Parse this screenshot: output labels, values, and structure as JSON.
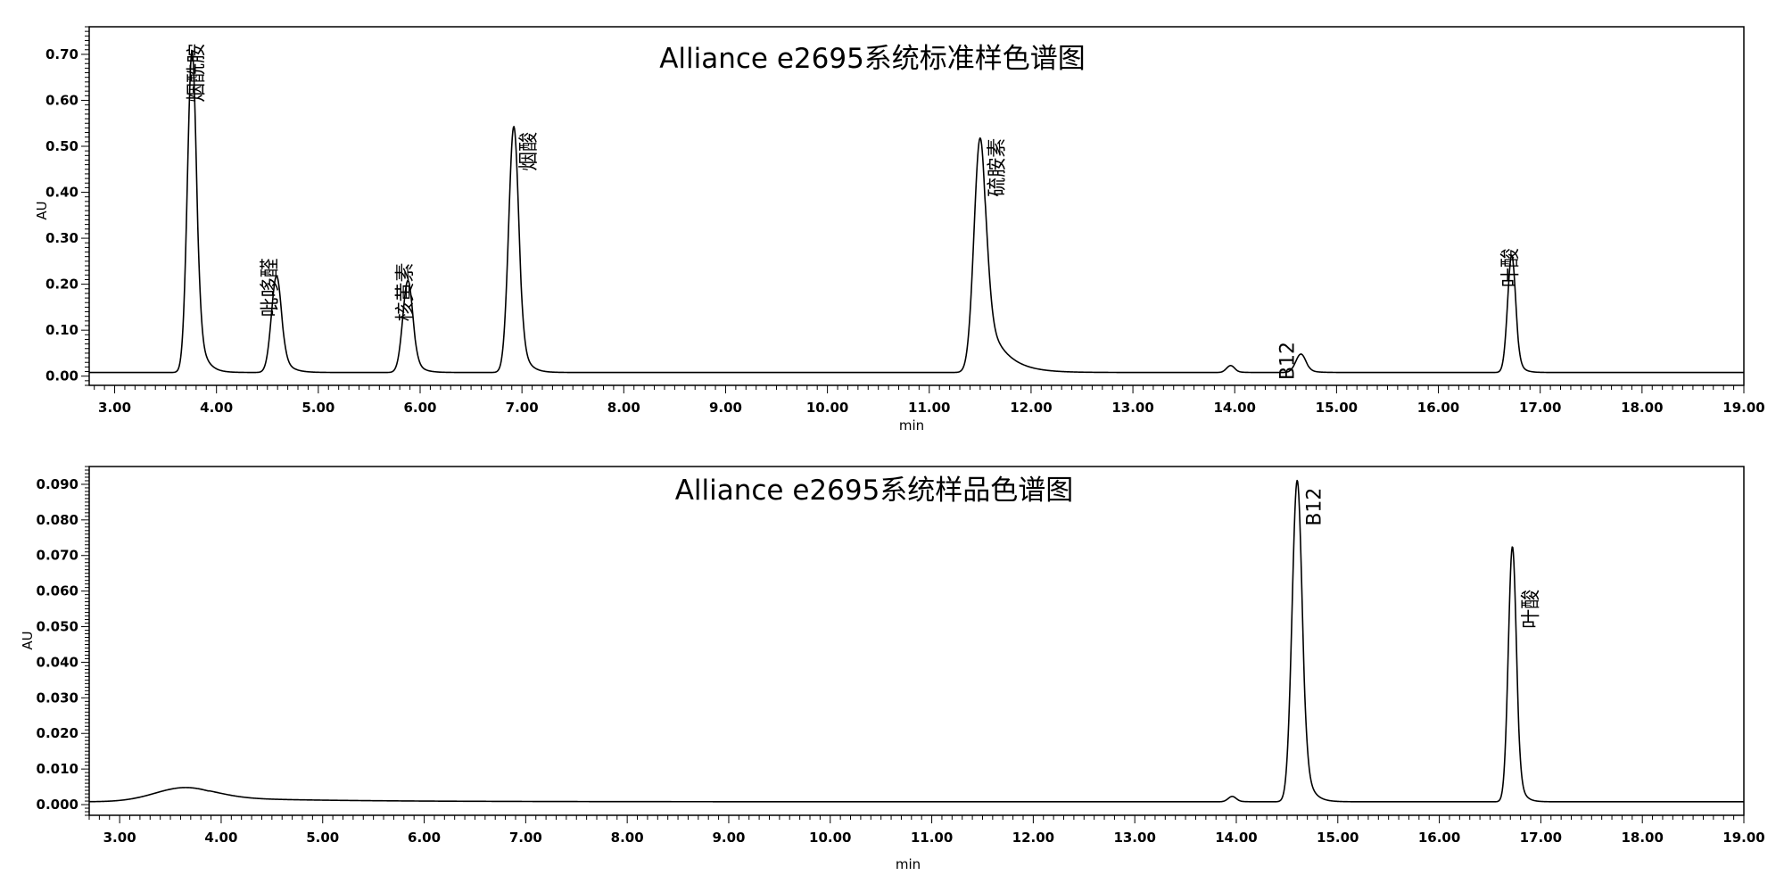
{
  "chart_data": [
    {
      "type": "line",
      "title": "Alliance e2695系统标准样色谱图",
      "xlabel": "min",
      "ylabel": "AU",
      "xlim": [
        2.75,
        19.0
      ],
      "ylim": [
        -0.02,
        0.76
      ],
      "x_ticks": [
        "3.00",
        "4.00",
        "5.00",
        "6.00",
        "7.00",
        "8.00",
        "9.00",
        "10.00",
        "11.00",
        "12.00",
        "13.00",
        "14.00",
        "15.00",
        "16.00",
        "17.00",
        "18.00",
        "19.00"
      ],
      "y_ticks": [
        "0.00",
        "0.10",
        "0.20",
        "0.30",
        "0.40",
        "0.50",
        "0.60",
        "0.70"
      ],
      "grid": false,
      "baseline": 0.008,
      "series": [
        {
          "peaks": [
            {
              "name": "烟酰胺",
              "rt": 3.76,
              "height": 0.7,
              "sigma": 0.045,
              "tail": 0.07
            },
            {
              "name": "吡哆醛",
              "rt": 4.59,
              "height": 0.21,
              "sigma": 0.05,
              "tail": 0.08
            },
            {
              "name": "核黄素",
              "rt": 5.88,
              "height": 0.2,
              "sigma": 0.05,
              "tail": 0.07
            },
            {
              "name": "烟酸",
              "rt": 6.92,
              "height": 0.535,
              "sigma": 0.05,
              "tail": 0.07
            },
            {
              "name": "硫胺素",
              "rt": 11.5,
              "height": 0.51,
              "sigma": 0.06,
              "tail": 0.18
            },
            {
              "name": "",
              "rt": 13.96,
              "height": 0.015,
              "sigma": 0.04,
              "tail": 0.05
            },
            {
              "name": "B12",
              "rt": 14.65,
              "height": 0.04,
              "sigma": 0.05,
              "tail": 0.07
            },
            {
              "name": "叶酸",
              "rt": 16.72,
              "height": 0.255,
              "sigma": 0.04,
              "tail": 0.05
            }
          ]
        }
      ]
    },
    {
      "type": "line",
      "title": "Alliance e2695系统样品色谱图",
      "xlabel": "min",
      "ylabel": "AU",
      "xlim": [
        2.7,
        19.0
      ],
      "ylim": [
        -0.003,
        0.095
      ],
      "x_ticks": [
        "3.00",
        "4.00",
        "5.00",
        "6.00",
        "7.00",
        "8.00",
        "9.00",
        "10.00",
        "11.00",
        "12.00",
        "13.00",
        "14.00",
        "15.00",
        "16.00",
        "17.00",
        "18.00",
        "19.00"
      ],
      "y_ticks": [
        "0.000",
        "0.010",
        "0.020",
        "0.030",
        "0.040",
        "0.050",
        "0.060",
        "0.070",
        "0.080",
        "0.090"
      ],
      "grid": false,
      "baseline": 0.0008,
      "series": [
        {
          "peaks": [
            {
              "name": "",
              "rt": 3.65,
              "height": 0.004,
              "sigma": 0.3,
              "tail": 1.2
            },
            {
              "name": "",
              "rt": 13.96,
              "height": 0.0015,
              "sigma": 0.04,
              "tail": 0.05
            },
            {
              "name": "B12",
              "rt": 14.6,
              "height": 0.0903,
              "sigma": 0.05,
              "tail": 0.07
            },
            {
              "name": "叶酸",
              "rt": 16.72,
              "height": 0.0717,
              "sigma": 0.04,
              "tail": 0.05
            }
          ]
        }
      ]
    }
  ]
}
